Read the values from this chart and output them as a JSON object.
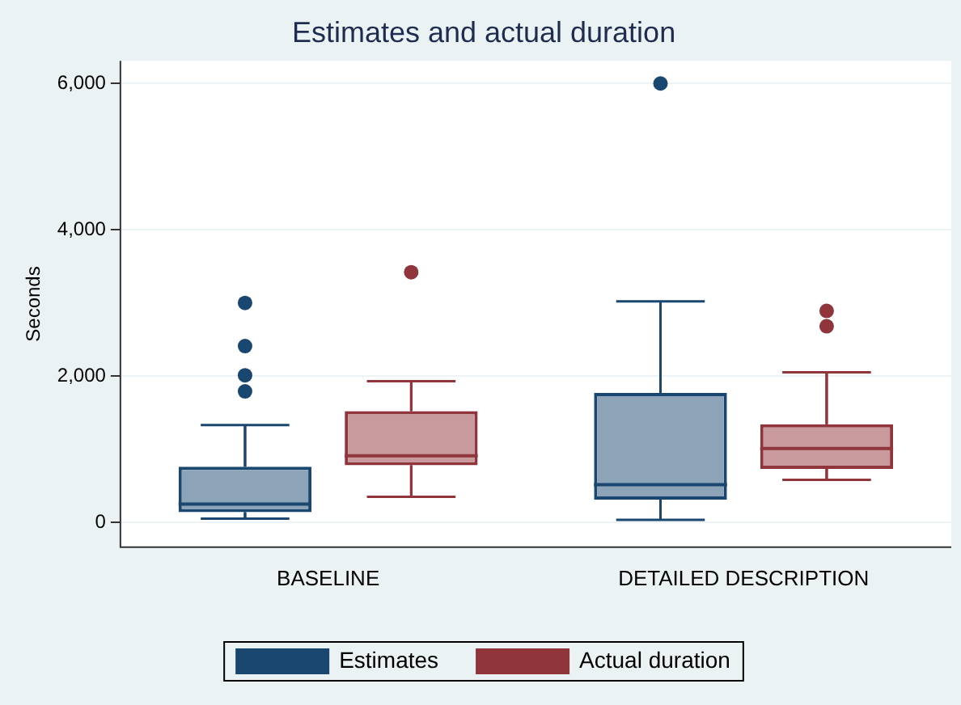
{
  "chart_data": {
    "type": "box",
    "title": "Estimates and actual duration",
    "ylabel": "Seconds",
    "categories": [
      "BASELINE",
      "DETAILED DESCRIPTION"
    ],
    "series": [
      {
        "name": "Estimates",
        "color": "#1a476f",
        "boxes": [
          {
            "low": 50,
            "q1": 140,
            "median": 250,
            "q3": 760,
            "high": 1330,
            "outliers": [
              1790,
              2010,
              2410,
              3000
            ]
          },
          {
            "low": 35,
            "q1": 310,
            "median": 515,
            "q3": 1770,
            "high": 3020,
            "outliers": [
              6000
            ]
          }
        ]
      },
      {
        "name": "Actual duration",
        "color": "#90353b",
        "boxes": [
          {
            "low": 350,
            "q1": 780,
            "median": 910,
            "q3": 1520,
            "high": 1930,
            "outliers": [
              3420
            ]
          },
          {
            "low": 580,
            "q1": 730,
            "median": 1010,
            "q3": 1340,
            "high": 2050,
            "outliers": [
              2680,
              2890
            ]
          }
        ]
      }
    ],
    "ylim": [
      -340,
      6310
    ],
    "yticks": [
      {
        "value": 0,
        "label": "0"
      },
      {
        "value": 2000,
        "label": "2,000"
      },
      {
        "value": 4000,
        "label": "4,000"
      },
      {
        "value": 6000,
        "label": "6,000"
      }
    ],
    "grid": "y",
    "legend": "bottom"
  }
}
